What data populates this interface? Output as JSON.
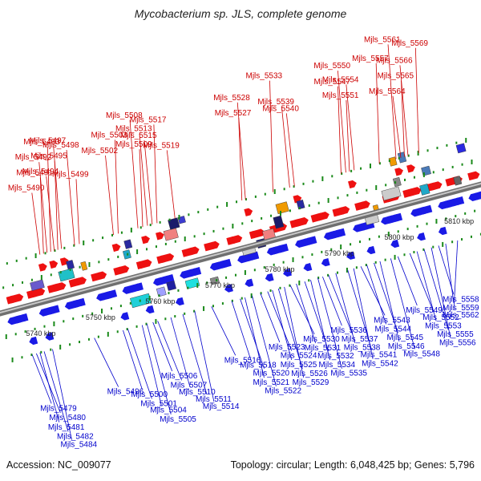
{
  "title": "Mycobacterium sp. JLS, complete genome",
  "footer": {
    "accession": "Accession: NC_009077",
    "summary": "Topology: circular; Length: 6,048,425 bp; Genes: 5,796"
  },
  "colors": {
    "forward_label": "#cc0000",
    "reverse_label": "#0000cc",
    "backbone": "#8a8a8a",
    "tick": "#1a8a1a"
  },
  "scale_labels": [
    {
      "text": "5740 kbp",
      "at": 5740
    },
    {
      "text": "5750 kbp",
      "at": 5750
    },
    {
      "text": "5760 kbp",
      "at": 5760
    },
    {
      "text": "5770 kbp",
      "at": 5770
    },
    {
      "text": "5780 kbp",
      "at": 5780
    },
    {
      "text": "5790 kbp",
      "at": 5790
    },
    {
      "text": "5800 kbp",
      "at": 5800
    },
    {
      "text": "5810 kbp",
      "at": 5810
    }
  ],
  "forward_genes": [
    {
      "name": "Mjls_5490",
      "pos": 5743.2
    },
    {
      "name": "Mjls_5491",
      "pos": 5743.8
    },
    {
      "name": "Mjls_5492",
      "pos": 5744.4
    },
    {
      "name": "Mjls_5493",
      "pos": 5745.0
    },
    {
      "name": "Mjls_5494",
      "pos": 5745.6
    },
    {
      "name": "Mjls_5495",
      "pos": 5746.2
    },
    {
      "name": "Mjls_5497",
      "pos": 5746.8
    },
    {
      "name": "Mjls_5498",
      "pos": 5749.0
    },
    {
      "name": "Mjls_5499",
      "pos": 5749.8
    },
    {
      "name": "Mjls_5502",
      "pos": 5755.5
    },
    {
      "name": "Mjls_5503",
      "pos": 5756.3
    },
    {
      "name": "Mjls_5508",
      "pos": 5759.6
    },
    {
      "name": "Mjls_5509",
      "pos": 5760.4
    },
    {
      "name": "Mjls_5513",
      "pos": 5761.2
    },
    {
      "name": "Mjls_5515",
      "pos": 5762.0
    },
    {
      "name": "Mjls_5517",
      "pos": 5762.8
    },
    {
      "name": "Mjls_5519",
      "pos": 5765.8
    },
    {
      "name": "Mjls_5527",
      "pos": 5777.0
    },
    {
      "name": "Mjls_5528",
      "pos": 5777.6
    },
    {
      "name": "Mjls_5533",
      "pos": 5782.2
    },
    {
      "name": "Mjls_5539",
      "pos": 5785.0
    },
    {
      "name": "Mjls_5540",
      "pos": 5785.8
    },
    {
      "name": "Mjls_5547",
      "pos": 5793.6
    },
    {
      "name": "Mjls_5550",
      "pos": 5794.4
    },
    {
      "name": "Mjls_5551",
      "pos": 5795.0
    },
    {
      "name": "Mjls_5554",
      "pos": 5795.8
    },
    {
      "name": "Mjls_5557",
      "pos": 5800.0
    },
    {
      "name": "Mjls_5561",
      "pos": 5802.8
    },
    {
      "name": "Mjls_5564",
      "pos": 5803.6
    },
    {
      "name": "Mjls_5565",
      "pos": 5804.2
    },
    {
      "name": "Mjls_5566",
      "pos": 5804.8
    },
    {
      "name": "Mjls_5569",
      "pos": 5806.6
    }
  ],
  "reverse_genes": [
    {
      "name": "Mjls_5479",
      "pos": 5737.8
    },
    {
      "name": "Mjls_5480",
      "pos": 5738.5
    },
    {
      "name": "Mjls_5481",
      "pos": 5739.1
    },
    {
      "name": "Mjls_5482",
      "pos": 5739.8
    },
    {
      "name": "Mjls_5484",
      "pos": 5741.2
    },
    {
      "name": "Mjls_5496",
      "pos": 5748.2
    },
    {
      "name": "Mjls_5500",
      "pos": 5753.0
    },
    {
      "name": "Mjls_5501",
      "pos": 5753.8
    },
    {
      "name": "Mjls_5504",
      "pos": 5756.2
    },
    {
      "name": "Mjls_5505",
      "pos": 5757.0
    },
    {
      "name": "Mjls_5506",
      "pos": 5758.0
    },
    {
      "name": "Mjls_5507",
      "pos": 5758.8
    },
    {
      "name": "Mjls_5510",
      "pos": 5761.0
    },
    {
      "name": "Mjls_5511",
      "pos": 5763.0
    },
    {
      "name": "Mjls_5514",
      "pos": 5765.0
    },
    {
      "name": "Mjls_5516",
      "pos": 5767.8
    },
    {
      "name": "Mjls_5518",
      "pos": 5771.2
    },
    {
      "name": "Mjls_5520",
      "pos": 5772.6
    },
    {
      "name": "Mjls_5521",
      "pos": 5773.4
    },
    {
      "name": "Mjls_5522",
      "pos": 5774.6
    },
    {
      "name": "Mjls_5523",
      "pos": 5776.0
    },
    {
      "name": "Mjls_5524",
      "pos": 5777.2
    },
    {
      "name": "Mjls_5525",
      "pos": 5778.0
    },
    {
      "name": "Mjls_5526",
      "pos": 5779.0
    },
    {
      "name": "Mjls_5529",
      "pos": 5780.0
    },
    {
      "name": "Mjls_5530",
      "pos": 5781.0
    },
    {
      "name": "Mjls_5531",
      "pos": 5782.0
    },
    {
      "name": "Mjls_5532",
      "pos": 5783.4
    },
    {
      "name": "Mjls_5534",
      "pos": 5784.4
    },
    {
      "name": "Mjls_5535",
      "pos": 5785.6
    },
    {
      "name": "Mjls_5536",
      "pos": 5786.4
    },
    {
      "name": "Mjls_5537",
      "pos": 5787.4
    },
    {
      "name": "Mjls_5538",
      "pos": 5788.6
    },
    {
      "name": "Mjls_5541",
      "pos": 5790.6
    },
    {
      "name": "Mjls_5542",
      "pos": 5791.6
    },
    {
      "name": "Mjls_5543",
      "pos": 5792.8
    },
    {
      "name": "Mjls_5544",
      "pos": 5793.8
    },
    {
      "name": "Mjls_5545",
      "pos": 5795.0
    },
    {
      "name": "Mjls_5546",
      "pos": 5796.0
    },
    {
      "name": "Mjls_5548",
      "pos": 5797.8
    },
    {
      "name": "Mjls_5549",
      "pos": 5799.0
    },
    {
      "name": "Mjls_5552",
      "pos": 5801.0
    },
    {
      "name": "Mjls_5553",
      "pos": 5802.2
    },
    {
      "name": "Mjls_5555",
      "pos": 5803.4
    },
    {
      "name": "Mjls_5556",
      "pos": 5804.6
    },
    {
      "name": "Mjls_5558",
      "pos": 5805.8
    },
    {
      "name": "Mjls_5559",
      "pos": 5807.0
    },
    {
      "name": "Mjls_5562",
      "pos": 5809.0
    }
  ]
}
